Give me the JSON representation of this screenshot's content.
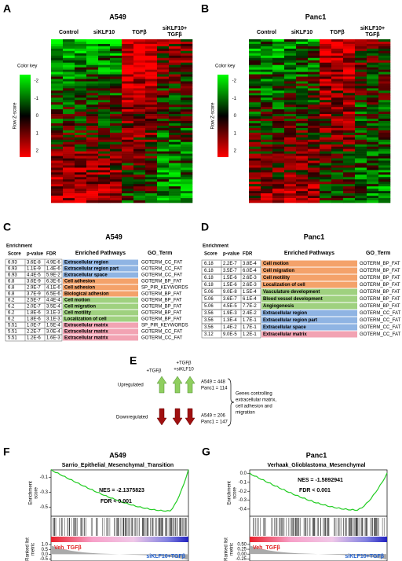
{
  "heatmaps": [
    {
      "label": "A",
      "title": "A549",
      "columns": [
        [
          "Control"
        ],
        [
          "siKLF10"
        ],
        [
          "TGFβ"
        ],
        [
          "siKLF10+",
          "TGFβ"
        ]
      ],
      "key_title": "Color key",
      "key_ticks": [
        "-2",
        "-1",
        "0",
        "1",
        "2"
      ],
      "key_axis": "Row Z-score"
    },
    {
      "label": "B",
      "title": "Panc1",
      "columns": [
        [
          "Control"
        ],
        [
          "siKLF10"
        ],
        [
          "TGFβ"
        ],
        [
          "siKLF10+",
          "TGFβ"
        ]
      ],
      "key_title": "Color key",
      "key_ticks": [
        "-2",
        "-1",
        "0",
        "1",
        "2"
      ],
      "key_axis": "Row Z-score"
    }
  ],
  "tables": [
    {
      "label": "C",
      "title": "A549",
      "header": [
        "Enrichment",
        "Score",
        "p-value",
        "FDR",
        "Enriched Pathways",
        "GO_Term"
      ],
      "rows": [
        [
          "6.93",
          "3.6E-8",
          "4.9E-6",
          "Extracellular region",
          "GOTERM_CC_FAT"
        ],
        [
          "6.93",
          "1.1E-9",
          "1.4E-6",
          "Extracellular region part",
          "GOTERM_CC_FAT"
        ],
        [
          "6.93",
          "4.4E-5",
          "5.9E-2",
          "Extracellular space",
          "GOTERM_CC_FAT"
        ],
        [
          "6.8",
          "3.6E-9",
          "6.3E-6",
          "Cell adhesion",
          "GOTERM_BP_FAT"
        ],
        [
          "6.8",
          "2.9E-7",
          "4.1E-6",
          "Cell adhesion",
          "SP_PIR_KEYWORDS"
        ],
        [
          "6.8",
          "3.7E-9",
          "6.5E-6",
          "Biological adhesion",
          "GOTERM_BP_FAT"
        ],
        [
          "6.2",
          "2.5E-7",
          "4.4E-4",
          "Cell motion",
          "GOTERM_BP_FAT"
        ],
        [
          "6.2",
          "2.0E-7",
          "3.5E-4",
          "Cell migration",
          "GOTERM_BP_FAT"
        ],
        [
          "6.2",
          "1.8E-6",
          "3.1E-3",
          "Cell motility",
          "GOTERM_BP_FAT"
        ],
        [
          "6.2",
          "1.8E-6",
          "3.1E-3",
          "Localization of cell",
          "GOTERM_BP_FAT"
        ],
        [
          "5.51",
          "1.0E-7",
          "1.5E-4",
          "Extracellular matrix",
          "SP_PIR_KEYWORDS"
        ],
        [
          "5.51",
          "2.2E-7",
          "3.0E-4",
          "Extracellular matrix",
          "GOTERM_CC_FAT"
        ],
        [
          "5.51",
          "1.2E-6",
          "1.6E-3",
          "Extracellular matrix",
          "GOTERM_CC_FAT"
        ]
      ],
      "row_colors": [
        "#8fb4e3",
        "#8fb4e3",
        "#8fb4e3",
        "#f4a26a",
        "#f4a26a",
        "#f4a26a",
        "#9fd17f",
        "#9fd17f",
        "#9fd17f",
        "#9fd17f",
        "#f2a3b3",
        "#f2a3b3",
        "#f2a3b3"
      ]
    },
    {
      "label": "D",
      "title": "Panc1",
      "header": [
        "Enrichment",
        "Score",
        "p-value",
        "FDR",
        "Enriched Pathways",
        "GO_Term"
      ],
      "rows": [
        [
          "6.18",
          "2.2E-7",
          "3.8E-4",
          "Cell motion",
          "GOTERM_BP_FAT"
        ],
        [
          "6.18",
          "3.5E-7",
          "6.0E-4",
          "Cell migration",
          "GOTERM_BP_FAT"
        ],
        [
          "6.18",
          "1.5E-6",
          "2.6E-3",
          "Cell motility",
          "GOTERM_BP_FAT"
        ],
        [
          "6.18",
          "1.5E-6",
          "2.6E-3",
          "Localization of cell",
          "GOTERM_BP_FAT"
        ],
        [
          "5.06",
          "9.0E-8",
          "1.5E-4",
          "Vasculature development",
          "GOTERM_BP_FAT"
        ],
        [
          "5.06",
          "3.6E-7",
          "6.1E-4",
          "Blood vessel development",
          "GOTERM_BP_FAT"
        ],
        [
          "5.06",
          "4.5E-5",
          "7.7E-2",
          "Angiogenesis",
          "GOTERM_BP_FAT"
        ],
        [
          "3.56",
          "1.9E-3",
          "2.4E-2",
          "Extracellular region",
          "GOTERM_CC_FAT"
        ],
        [
          "3.56",
          "1.3E-4",
          "1.7E-1",
          "Extracellular region part",
          "GOTERM_CC_FAT"
        ],
        [
          "3.56",
          "1.4E-2",
          "1.7E-1",
          "Extracellular space",
          "GOTERM_CC_FAT"
        ],
        [
          "3.12",
          "9.0E-5",
          "1.2E-1",
          "Extracellular matrix",
          "GOTERM_CC_FAT"
        ]
      ],
      "row_colors": [
        "#f4a26a",
        "#f4a26a",
        "#f4a26a",
        "#f4a26a",
        "#9fd17f",
        "#9fd17f",
        "#9fd17f",
        "#8fb4e3",
        "#8fb4e3",
        "#8fb4e3",
        "#f2a3b3"
      ]
    }
  ],
  "summary": {
    "label": "E",
    "treat1": "+TGFβ",
    "treat2": [
      "+TGFβ",
      "+siKLF10"
    ],
    "up": "Upregulated",
    "down": "Downregulated",
    "up_counts": [
      "A549 = 448",
      "Panc1 = 114"
    ],
    "down_counts": [
      "A549 = 206",
      "Panc1 = 147"
    ],
    "note": [
      "Genes controlling",
      "extracellular matrix,",
      "cell adhesion and",
      "migration"
    ]
  },
  "gsea": [
    {
      "label": "F",
      "title": "A549",
      "gene_set": "Sarrio_Epithelial_Mesenchymal_Transition",
      "nes": "NES = -2.1375823",
      "fdr": "FDR < 0.001",
      "es_axis": [
        "Enrichment",
        "score"
      ],
      "es_ticks": [
        "-0.1",
        "-0.3",
        "-0.5"
      ],
      "rank_axis": [
        "Ranked list",
        "metric"
      ],
      "rank_ticks": [
        "1.0",
        "0.5",
        "0.0",
        "-0.5"
      ],
      "pos": "Veh_TGFβ",
      "neg": "siKLF10+TGFβ"
    },
    {
      "label": "G",
      "title": "Panc1",
      "gene_set": "Verhaak_Glioblastoma_Mesenchymal",
      "nes": "NES = -1.5892941",
      "fdr": "FDR < 0.001",
      "es_axis": [
        "Enrichment",
        "score"
      ],
      "es_ticks": [
        "0.0",
        "-0.1",
        "-0.2",
        "-0.3",
        "-0.4"
      ],
      "rank_axis": [
        "Ranked list",
        "metric"
      ],
      "rank_ticks": [
        "0.50",
        "0.25",
        "0.00",
        "-0.25"
      ],
      "pos": "Veh_TGFβ",
      "neg": "siKLF10+TGFβ"
    }
  ]
}
